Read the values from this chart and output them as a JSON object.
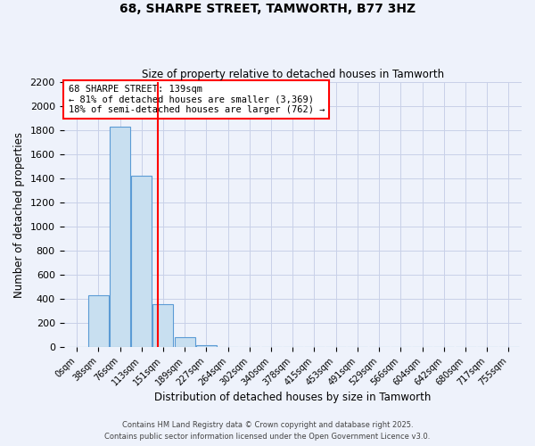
{
  "title": "68, SHARPE STREET, TAMWORTH, B77 3HZ",
  "subtitle": "Size of property relative to detached houses in Tamworth",
  "xlabel": "Distribution of detached houses by size in Tamworth",
  "ylabel": "Number of detached properties",
  "bar_labels": [
    "0sqm",
    "38sqm",
    "76sqm",
    "113sqm",
    "151sqm",
    "189sqm",
    "227sqm",
    "264sqm",
    "302sqm",
    "340sqm",
    "378sqm",
    "415sqm",
    "453sqm",
    "491sqm",
    "529sqm",
    "566sqm",
    "604sqm",
    "642sqm",
    "680sqm",
    "717sqm",
    "755sqm"
  ],
  "bar_values": [
    0,
    430,
    1830,
    1420,
    355,
    80,
    20,
    0,
    0,
    0,
    0,
    0,
    0,
    0,
    0,
    0,
    0,
    0,
    0,
    0,
    0
  ],
  "bar_color": "#c8dff0",
  "bar_edge_color": "#5b9bd5",
  "vline_x": 3.75,
  "vline_color": "red",
  "annotation_text": "68 SHARPE STREET: 139sqm\n← 81% of detached houses are smaller (3,369)\n18% of semi-detached houses are larger (762) →",
  "annotation_box_color": "white",
  "annotation_box_edge_color": "red",
  "ylim": [
    0,
    2200
  ],
  "yticks": [
    0,
    200,
    400,
    600,
    800,
    1000,
    1200,
    1400,
    1600,
    1800,
    2000,
    2200
  ],
  "footer_line1": "Contains HM Land Registry data © Crown copyright and database right 2025.",
  "footer_line2": "Contains public sector information licensed under the Open Government Licence v3.0.",
  "bg_color": "#eef2fb",
  "grid_color": "#c8d0e8"
}
